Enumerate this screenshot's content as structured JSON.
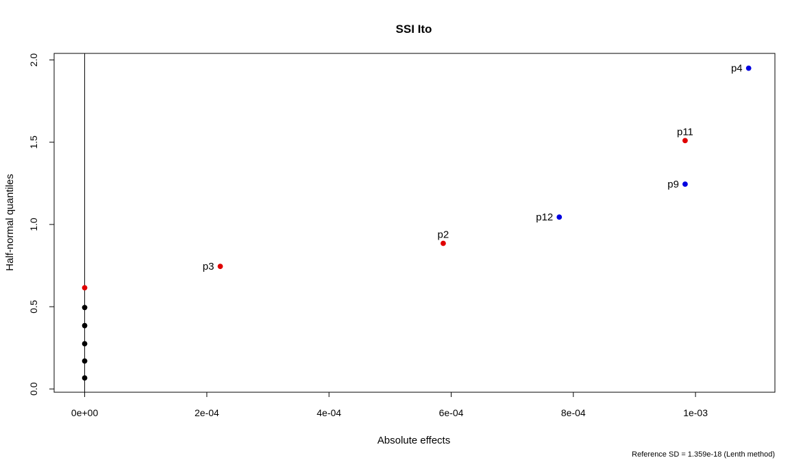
{
  "chart_data": {
    "type": "scatter",
    "title": "SSI Ito",
    "xlabel": "Absolute effects",
    "ylabel": "Half-normal quantiles",
    "footnote": "Reference SD = 1.359e-18 (Lenth method)",
    "xlim": [
      -5e-05,
      0.00113
    ],
    "ylim": [
      -0.02,
      2.04
    ],
    "x_ticks": [
      0,
      0.0002,
      0.0004,
      0.0006,
      0.0008,
      0.001
    ],
    "x_tick_labels": [
      "0e+00",
      "2e-04",
      "4e-04",
      "6e-04",
      "8e-04",
      "1e-03"
    ],
    "y_ticks": [
      0,
      0.5,
      1,
      1.5,
      2
    ],
    "y_tick_labels": [
      "0.0",
      "0.5",
      "1.0",
      "1.5",
      "2.0"
    ],
    "grid": false,
    "reference_line_x": 0,
    "colors": {
      "inactive": "#000000",
      "positive": "#e00000",
      "negative": "#0000e0"
    },
    "points": [
      {
        "x": 0,
        "y": 0.067,
        "color": "#000000",
        "label": "",
        "label_side": "none"
      },
      {
        "x": 0,
        "y": 0.17,
        "color": "#000000",
        "label": "",
        "label_side": "none"
      },
      {
        "x": 0,
        "y": 0.275,
        "color": "#000000",
        "label": "",
        "label_side": "none"
      },
      {
        "x": 0,
        "y": 0.385,
        "color": "#000000",
        "label": "",
        "label_side": "none"
      },
      {
        "x": 0,
        "y": 0.495,
        "color": "#000000",
        "label": "",
        "label_side": "none"
      },
      {
        "x": 0,
        "y": 0.615,
        "color": "#e00000",
        "label": "",
        "label_side": "none"
      },
      {
        "x": 0.000222,
        "y": 0.745,
        "color": "#e00000",
        "label": "p3",
        "label_side": "left"
      },
      {
        "x": 0.000587,
        "y": 0.885,
        "color": "#e00000",
        "label": "p2",
        "label_side": "top"
      },
      {
        "x": 0.000777,
        "y": 1.045,
        "color": "#0000e0",
        "label": "p12",
        "label_side": "left"
      },
      {
        "x": 0.000983,
        "y": 1.245,
        "color": "#0000e0",
        "label": "p9",
        "label_side": "left"
      },
      {
        "x": 0.000983,
        "y": 1.51,
        "color": "#e00000",
        "label": "p11",
        "label_side": "top"
      },
      {
        "x": 0.001087,
        "y": 1.95,
        "color": "#0000e0",
        "label": "p4",
        "label_side": "left"
      }
    ]
  }
}
